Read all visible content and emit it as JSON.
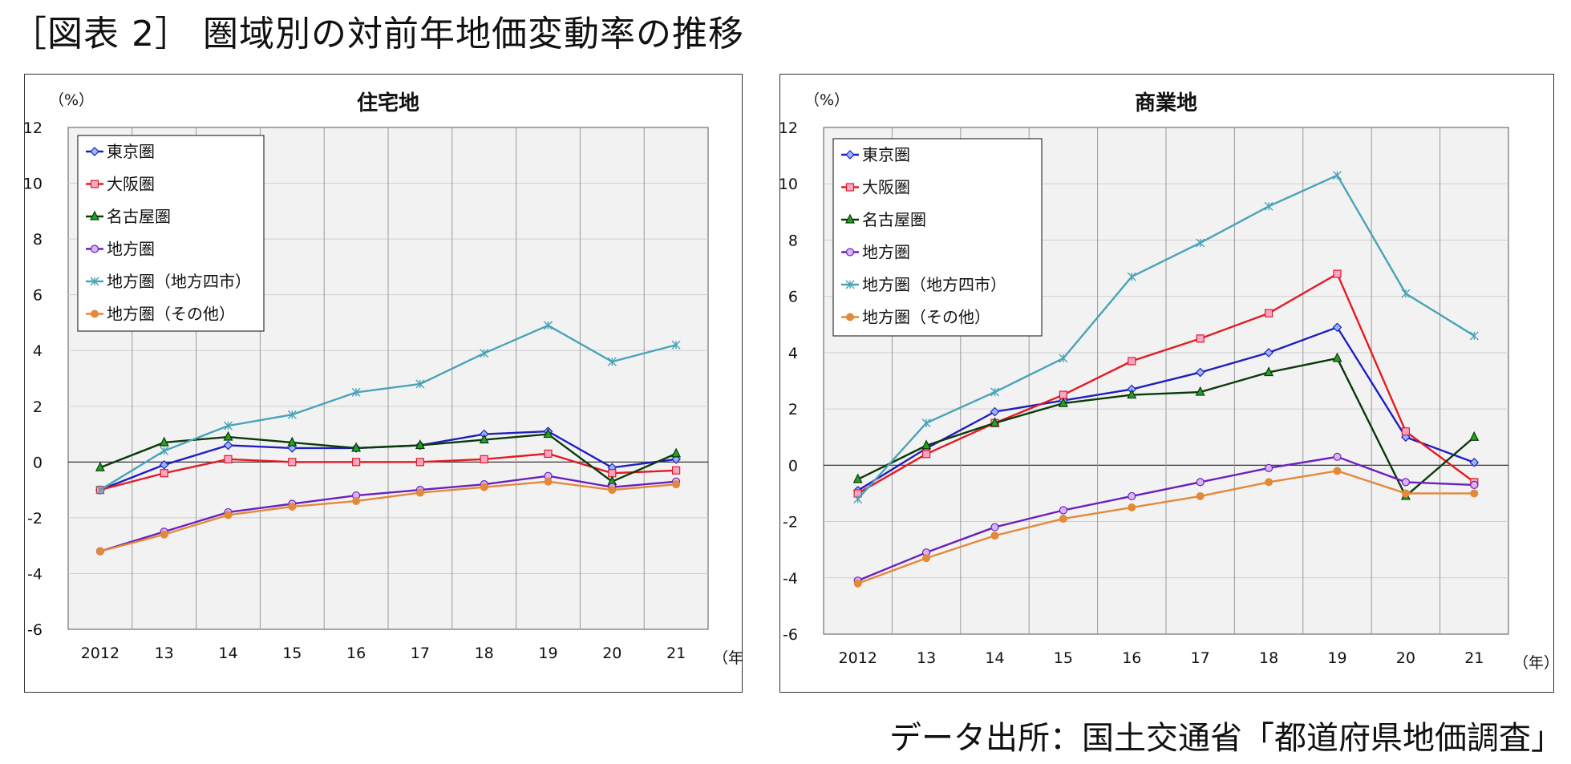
{
  "page_title": "［図表 2］ 圏域別の対前年地価変動率の推移",
  "source": "データ出所：国土交通省「都道府県地価調査」",
  "colors": {
    "tokyo": "#1f1fbf",
    "osaka": "#e31b23",
    "nagoya": "#0a3a0a",
    "chiho": "#6a1fbf",
    "chiho4": "#4aa3b8",
    "chiho_other": "#e3893a"
  },
  "chart_data": [
    {
      "type": "line",
      "title": "住宅地",
      "y_unit": "（%）",
      "x_unit": "（年）",
      "categories": [
        "2012",
        "13",
        "14",
        "15",
        "16",
        "17",
        "18",
        "19",
        "20",
        "21"
      ],
      "ylim": [
        -6,
        12
      ],
      "yticks": [
        -6,
        -4,
        -2,
        0,
        2,
        4,
        6,
        8,
        10,
        12
      ],
      "grid": true,
      "legend": "top-left",
      "series": [
        {
          "name": "東京圏",
          "key": "tokyo",
          "marker": "diamond",
          "values": [
            -1.0,
            -0.1,
            0.6,
            0.5,
            0.5,
            0.6,
            1.0,
            1.1,
            -0.2,
            0.1
          ]
        },
        {
          "name": "大阪圏",
          "key": "osaka",
          "marker": "square",
          "values": [
            -1.0,
            -0.4,
            0.1,
            0.0,
            0.0,
            0.0,
            0.1,
            0.3,
            -0.4,
            -0.3
          ]
        },
        {
          "name": "名古屋圏",
          "key": "nagoya",
          "marker": "triangle",
          "values": [
            -0.2,
            0.7,
            0.9,
            0.7,
            0.5,
            0.6,
            0.8,
            1.0,
            -0.7,
            0.3
          ]
        },
        {
          "name": "地方圏",
          "key": "chiho",
          "marker": "circle",
          "values": [
            -3.2,
            -2.5,
            -1.8,
            -1.5,
            -1.2,
            -1.0,
            -0.8,
            -0.5,
            -0.9,
            -0.7
          ]
        },
        {
          "name": "地方圏（地方四市）",
          "key": "chiho4",
          "marker": "star",
          "values": [
            -1.0,
            0.4,
            1.3,
            1.7,
            2.5,
            2.8,
            3.9,
            4.9,
            3.6,
            4.2
          ]
        },
        {
          "name": "地方圏（その他）",
          "key": "chiho_other",
          "marker": "dot",
          "values": [
            -3.2,
            -2.6,
            -1.9,
            -1.6,
            -1.4,
            -1.1,
            -0.9,
            -0.7,
            -1.0,
            -0.8
          ]
        }
      ]
    },
    {
      "type": "line",
      "title": "商業地",
      "y_unit": "（%）",
      "x_unit": "（年）",
      "categories": [
        "2012",
        "13",
        "14",
        "15",
        "16",
        "17",
        "18",
        "19",
        "20",
        "21"
      ],
      "ylim": [
        -6,
        12
      ],
      "yticks": [
        -6,
        -4,
        -2,
        0,
        2,
        4,
        6,
        8,
        10,
        12
      ],
      "grid": true,
      "legend": "top-left",
      "series": [
        {
          "name": "東京圏",
          "key": "tokyo",
          "marker": "diamond",
          "values": [
            -0.9,
            0.6,
            1.9,
            2.3,
            2.7,
            3.3,
            4.0,
            4.9,
            1.0,
            0.1
          ]
        },
        {
          "name": "大阪圏",
          "key": "osaka",
          "marker": "square",
          "values": [
            -1.0,
            0.4,
            1.5,
            2.5,
            3.7,
            4.5,
            5.4,
            6.8,
            1.2,
            -0.6
          ]
        },
        {
          "name": "名古屋圏",
          "key": "nagoya",
          "marker": "triangle",
          "values": [
            -0.5,
            0.7,
            1.5,
            2.2,
            2.5,
            2.6,
            3.3,
            3.8,
            -1.1,
            1.0
          ]
        },
        {
          "name": "地方圏",
          "key": "chiho",
          "marker": "circle",
          "values": [
            -4.1,
            -3.1,
            -2.2,
            -1.6,
            -1.1,
            -0.6,
            -0.1,
            0.3,
            -0.6,
            -0.7
          ]
        },
        {
          "name": "地方圏（地方四市）",
          "key": "chiho4",
          "marker": "star",
          "values": [
            -1.2,
            1.5,
            2.6,
            3.8,
            6.7,
            7.9,
            9.2,
            10.3,
            6.1,
            4.6
          ]
        },
        {
          "name": "地方圏（その他）",
          "key": "chiho_other",
          "marker": "dot",
          "values": [
            -4.2,
            -3.3,
            -2.5,
            -1.9,
            -1.5,
            -1.1,
            -0.6,
            -0.2,
            -1.0,
            -1.0
          ]
        }
      ]
    }
  ]
}
